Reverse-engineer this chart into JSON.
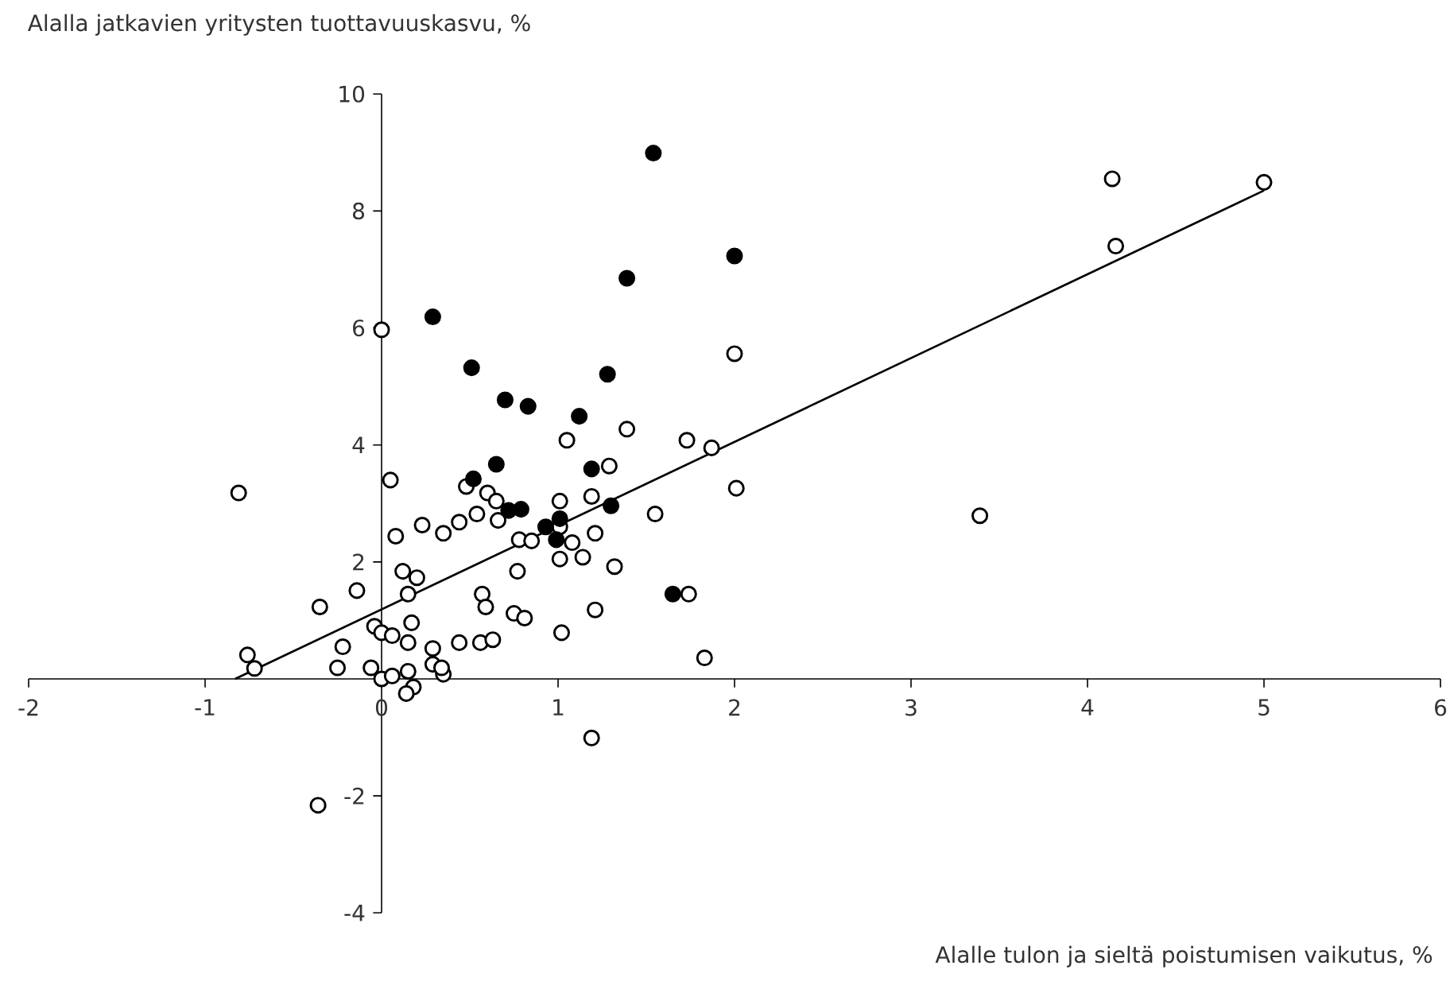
{
  "chart_data": {
    "type": "scatter",
    "ylabel": "Alalla jatkavien yritysten tuottavuuskasvu, %",
    "xlabel": "Alalle tulon ja sieltä poistumisen vaikutus, %",
    "xlim": [
      -2,
      6
    ],
    "ylim": [
      -4,
      10
    ],
    "xticks": [
      -2,
      -1,
      0,
      1,
      2,
      3,
      4,
      5,
      6
    ],
    "yticks": [
      -4,
      -2,
      2,
      4,
      6,
      8,
      10
    ],
    "marker": "circle",
    "series": [
      {
        "color": "#ffffff",
        "x": [
          -0.81,
          0.0,
          0.05,
          0.48,
          0.6,
          0.65,
          0.54,
          0.66,
          0.44,
          0.23,
          0.35,
          0.08,
          0.78,
          0.77,
          0.12,
          0.2,
          0.15,
          -0.14,
          -0.35,
          0.17,
          -0.04,
          0.0,
          0.06,
          -0.22,
          0.15,
          0.29,
          0.44,
          0.56,
          0.63,
          -0.76,
          -0.72,
          -0.25,
          -0.06,
          0.0,
          0.06,
          0.15,
          0.29,
          0.35,
          0.34,
          0.18,
          0.14,
          -0.36,
          1.19,
          2.0,
          1.39,
          1.05,
          1.73,
          1.87,
          1.29,
          2.01,
          1.55,
          1.01,
          1.19,
          1.01,
          1.08,
          1.21,
          0.85,
          1.01,
          1.14,
          1.32,
          0.57,
          0.59,
          0.75,
          0.81,
          1.21,
          1.74,
          1.02,
          1.83,
          3.39,
          4.14,
          4.16,
          5.0
        ],
        "values": [
          3.18,
          5.97,
          3.4,
          3.29,
          3.18,
          3.04,
          2.82,
          2.71,
          2.68,
          2.63,
          2.49,
          2.44,
          2.38,
          1.84,
          1.84,
          1.73,
          1.45,
          1.51,
          1.23,
          0.96,
          0.9,
          0.79,
          0.74,
          0.55,
          0.62,
          0.52,
          0.62,
          0.62,
          0.67,
          0.41,
          0.18,
          0.19,
          0.19,
          0.0,
          0.05,
          0.13,
          0.25,
          0.08,
          0.19,
          -0.14,
          -0.25,
          -2.16,
          -1.01,
          5.56,
          4.27,
          4.08,
          4.08,
          3.95,
          3.64,
          3.26,
          2.82,
          3.04,
          3.12,
          2.6,
          2.33,
          2.49,
          2.36,
          2.05,
          2.08,
          1.92,
          1.45,
          1.23,
          1.12,
          1.04,
          1.18,
          1.45,
          0.79,
          0.36,
          2.79,
          8.55,
          7.4,
          8.49
        ]
      },
      {
        "color": "#000000",
        "x": [
          1.54,
          0.29,
          2.0,
          1.39,
          0.51,
          0.7,
          0.83,
          1.28,
          1.12,
          0.65,
          0.52,
          1.19,
          0.79,
          0.72,
          1.3,
          0.93,
          1.01,
          0.99,
          1.65
        ],
        "values": [
          8.99,
          6.19,
          7.23,
          6.85,
          5.32,
          4.77,
          4.66,
          5.21,
          4.49,
          3.67,
          3.42,
          3.59,
          2.9,
          2.88,
          2.96,
          2.6,
          2.74,
          2.38,
          1.45
        ]
      },
      {
        "type": "line",
        "color": "#000000",
        "x": [
          -0.83,
          5.0
        ],
        "values": [
          0.0,
          8.35
        ],
        "marker": "none"
      }
    ]
  }
}
